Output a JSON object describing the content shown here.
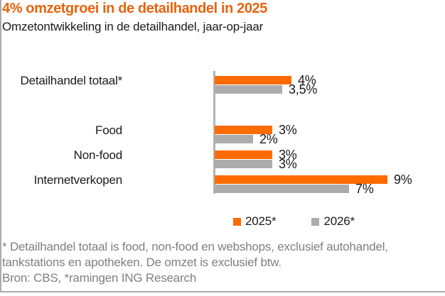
{
  "header": {
    "title": "4% omzetgroei in de detailhandel in 2025",
    "subtitle": "Omzetontwikkeling in de detailhandel, jaar-op-jaar"
  },
  "chart_data": {
    "type": "bar",
    "orientation": "horizontal",
    "title": "4% omzetgroei in de detailhandel in 2025",
    "subtitle": "Omzetontwikkeling in de detailhandel, jaar-op-jaar",
    "categories": [
      "Detailhandel totaal*",
      "Food",
      "Non-food",
      "Internetverkopen"
    ],
    "series": [
      {
        "name": "2025*",
        "color": "#ff6b00",
        "values": [
          4,
          3,
          3,
          9
        ],
        "labels": [
          "4%",
          "3%",
          "3%",
          "9%"
        ]
      },
      {
        "name": "2026*",
        "color": "#acacac",
        "values": [
          3.5,
          2,
          3,
          7
        ],
        "labels": [
          "3,5%",
          "2%",
          "3%",
          "7%"
        ]
      }
    ],
    "value_suffix": "%",
    "xlim": [
      0,
      12
    ],
    "grid": false,
    "legend_position": "bottom"
  },
  "legend": {
    "items": [
      {
        "label": "2025*",
        "color": "#ff6b00"
      },
      {
        "label": "2026*",
        "color": "#acacac"
      }
    ]
  },
  "footnotes": {
    "note": "* Detailhandel totaal is food, non-food en webshops, exclusief autohandel, tankstations en apotheken. De omzet is exclusief btw.",
    "source": "Bron: CBS, *ramingen ING Research"
  },
  "colors": {
    "title_orange": "#e8630d",
    "bar_2025": "#ff6b00",
    "bar_2026": "#acacac",
    "axis_gray": "#b3b3b3",
    "text_dark": "#1a1a1a",
    "footnote_gray": "#7f7f7f",
    "border_gray": "#ababab"
  }
}
